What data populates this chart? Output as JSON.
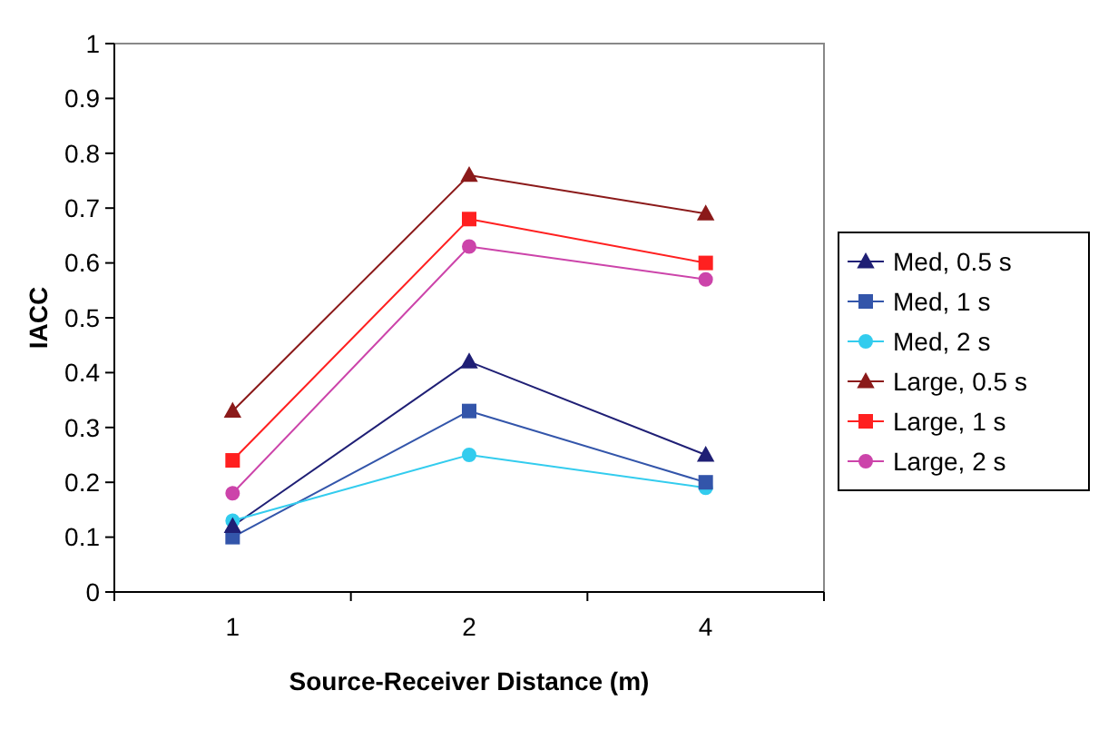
{
  "chart_data": {
    "type": "line",
    "xlabel": "Source-Receiver Distance (m)",
    "ylabel": "IACC",
    "categories": [
      "1",
      "2",
      "4"
    ],
    "ylim": [
      0,
      1
    ],
    "yticks": [
      0,
      0.1,
      0.2,
      0.3,
      0.4,
      0.5,
      0.6,
      0.7,
      0.8,
      0.9,
      1
    ],
    "grid": false,
    "legend": "right",
    "series": [
      {
        "name": "Med, 0.5 s",
        "color": "#1f1f75",
        "marker": "triangle",
        "values": [
          0.12,
          0.42,
          0.25
        ]
      },
      {
        "name": "Med, 1 s",
        "color": "#3355aa",
        "marker": "square",
        "values": [
          0.1,
          0.33,
          0.2
        ]
      },
      {
        "name": "Med, 2 s",
        "color": "#33ccee",
        "marker": "circle",
        "values": [
          0.13,
          0.25,
          0.19
        ]
      },
      {
        "name": "Large, 0.5 s",
        "color": "#8b1a1a",
        "marker": "triangle",
        "values": [
          0.33,
          0.76,
          0.69
        ]
      },
      {
        "name": "Large, 1 s",
        "color": "#ff2020",
        "marker": "square",
        "values": [
          0.24,
          0.68,
          0.6
        ]
      },
      {
        "name": "Large, 2 s",
        "color": "#cc44aa",
        "marker": "circle",
        "values": [
          0.18,
          0.63,
          0.57
        ]
      }
    ]
  }
}
